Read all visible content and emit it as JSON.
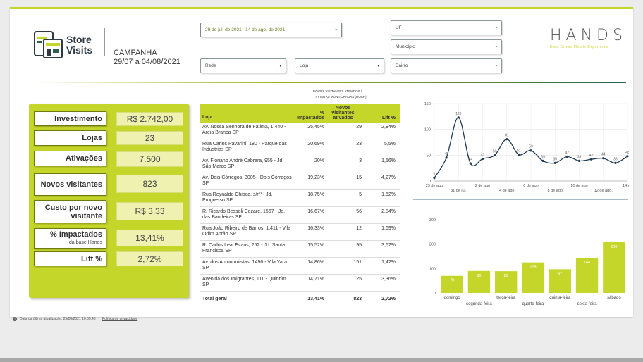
{
  "header": {
    "logo_line1": "Store",
    "logo_line2": "Visits",
    "campaign_label": "CAMPANHA",
    "campaign_dates": "29/07 a 04/08/2021",
    "brand": "HANDS",
    "brand_tag": "Data Driven Mobile Experience"
  },
  "filters": {
    "date_start": "29 de jul. de 2021",
    "date_end": "14 de ago. de 2021",
    "uf": "UF",
    "municipio": "Município",
    "rede": "Rede",
    "loja": "Loja",
    "bairro": "Bairro"
  },
  "kpis": [
    {
      "label": "Investimento",
      "sub": "",
      "value": "R$ 2.742,00"
    },
    {
      "label": "Lojas",
      "sub": "",
      "value": "23"
    },
    {
      "label": "Ativações",
      "sub": "",
      "value": "7.500"
    },
    {
      "label": "Novos visitantes",
      "sub": "",
      "value": "823"
    },
    {
      "label": "Custo por novo visitante",
      "sub": "",
      "value": "R$ 3,33"
    },
    {
      "label": "% Impactados",
      "sub": "da base Hands",
      "value": "13,41%"
    },
    {
      "label": "Lift %",
      "sub": "",
      "value": "2,72%"
    }
  ],
  "table": {
    "note_line1": "NOVOS VISITANTES ATIVADOS /",
    "note_line2": "TT VISITAS MONITORADAS (ROAH)",
    "headers": [
      "Loja",
      "% Impactados",
      "Novos visitantes ativados",
      "Lift %"
    ],
    "rows": [
      [
        "Av. Nossa Senhora de Fátima, 1.440 - Areia Branca SP",
        "25,45%",
        "29",
        "2,94%"
      ],
      [
        "Rua Carlos Pavarini, 180 - Parque das Industrias SP",
        "20,69%",
        "23",
        "5,5%"
      ],
      [
        "Av. Floriano André Cabrera, 955 - Jd. São Marco SP",
        "20%",
        "3",
        "1,56%"
      ],
      [
        "Av. Dois Córregos, 3005 - Dois Córregos SP",
        "19,23%",
        "15",
        "4,27%"
      ],
      [
        "Rua Reynaldo Chioca, s/nº - Jd. Progresso SP",
        "18,75%",
        "5",
        "1,52%"
      ],
      [
        "R. Ricardo Bessoli Cezare, 1567 - Jd. das Bandeiras SP",
        "16,67%",
        "56",
        "2,84%"
      ],
      [
        "Rua João Ribeiro de Barros, 1.411 - Vila Odim Antão SP",
        "16,33%",
        "12",
        "1,69%"
      ],
      [
        "R. Carlos Leal Evans, 252 - Jd. Santa Francisca SP",
        "15,52%",
        "95",
        "3,62%"
      ],
      [
        "Av. dos Autonomistas, 1496 - Vila Yara SP",
        "14,86%",
        "151",
        "1,42%"
      ],
      [
        "Avenida dos Imigrantes, 111 - Quirirím SP",
        "14,71%",
        "25",
        "3,36%"
      ]
    ],
    "total": [
      "Total geral",
      "13,41%",
      "823",
      "2,72%"
    ]
  },
  "footer": {
    "updated": "Data da última atualização: 25/08/2021 10:05:43",
    "privacy": "Política de privacidade"
  },
  "colors": {
    "accent": "#c5d62a",
    "line": "#1f3b57",
    "bar": "#c5d62a"
  },
  "chart_data": [
    {
      "type": "line",
      "x_ticks_top": [
        "29 de ago",
        "2 de ago",
        "6 de ago",
        "10 de ago",
        "14 de"
      ],
      "x_ticks_bottom": [
        "31 de jul.",
        "4 de ago",
        "8 de ago",
        "12 de ago."
      ],
      "y_ticks": [
        "0",
        "50",
        "100",
        "150"
      ],
      "ylim": [
        0,
        150
      ],
      "values": [
        6,
        45,
        123,
        34,
        43,
        50,
        81,
        51,
        59,
        39,
        35,
        47,
        39,
        42,
        44,
        35,
        48
      ],
      "labels": [
        "6",
        "45",
        "123",
        "34",
        "43",
        "50",
        "81",
        "51",
        "59",
        "39",
        "35",
        "47",
        "39",
        "42",
        "44",
        "35",
        "48"
      ]
    },
    {
      "type": "bar",
      "categories": [
        "domingo",
        "segunda-feira",
        "terça-feira",
        "quarta-feira",
        "quinta-feira",
        "sexta-feira",
        "sábado"
      ],
      "values": [
        70,
        90,
        89,
        125,
        97,
        144,
        208
      ],
      "y_ticks": [
        "0",
        "100",
        "200",
        "300"
      ],
      "ylim": [
        0,
        300
      ]
    }
  ]
}
